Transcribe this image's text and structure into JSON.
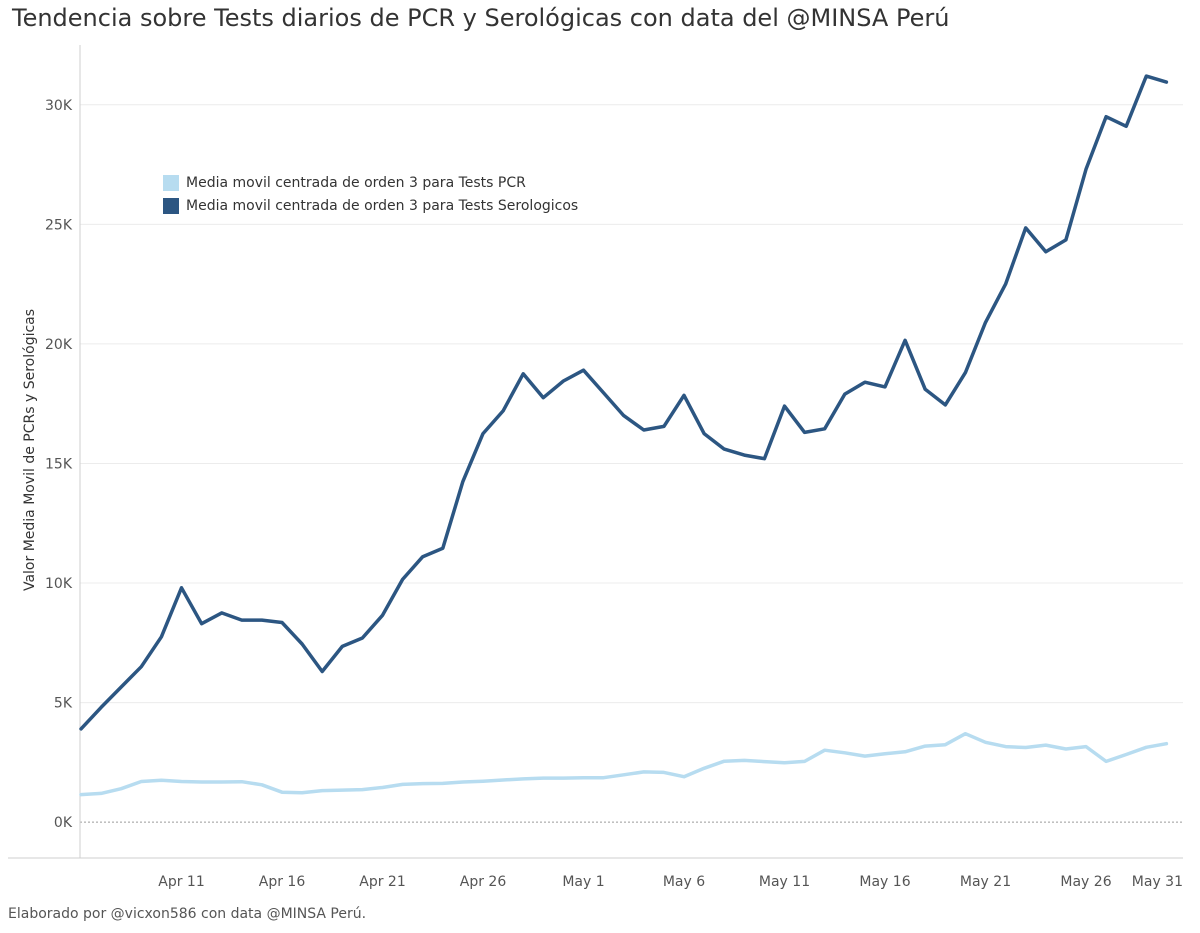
{
  "chart_data": {
    "type": "line",
    "title": "Tendencia sobre Tests diarios de PCR y Serológicas con data del @MINSA Perú",
    "ylabel": "Valor Media Movil de PCRs y Serológicas",
    "xlabel": "",
    "footer": "Elaborado por @vicxon586 con data @MINSA Perú.",
    "x_start": "2020-04-06",
    "x_end": "2020-05-30",
    "x_ticks": [
      {
        "date": "2020-04-11",
        "label": "Apr 11"
      },
      {
        "date": "2020-04-16",
        "label": "Apr 16"
      },
      {
        "date": "2020-04-21",
        "label": "Apr 21"
      },
      {
        "date": "2020-04-26",
        "label": "Apr 26"
      },
      {
        "date": "2020-05-01",
        "label": "May 1"
      },
      {
        "date": "2020-05-06",
        "label": "May 6"
      },
      {
        "date": "2020-05-11",
        "label": "May 11"
      },
      {
        "date": "2020-05-16",
        "label": "May 16"
      },
      {
        "date": "2020-05-21",
        "label": "May 21"
      },
      {
        "date": "2020-05-26",
        "label": "May 26"
      },
      {
        "date": "2020-05-31",
        "label": "May 31"
      }
    ],
    "y_ticks": [
      {
        "value": 0,
        "label": "0K"
      },
      {
        "value": 5000,
        "label": "5K"
      },
      {
        "value": 10000,
        "label": "10K"
      },
      {
        "value": 15000,
        "label": "15K"
      },
      {
        "value": 20000,
        "label": "20K"
      },
      {
        "value": 25000,
        "label": "25K"
      },
      {
        "value": 30000,
        "label": "30K"
      }
    ],
    "ylim": [
      -1500,
      32500
    ],
    "grid": true,
    "legend_position": "top-left",
    "series": [
      {
        "name": "Media movil centrada de orden 3 para Tests PCR",
        "color": "#b7dcf0",
        "values": [
          1150,
          1200,
          1400,
          1700,
          1750,
          1700,
          1680,
          1680,
          1690,
          1560,
          1250,
          1230,
          1320,
          1340,
          1360,
          1450,
          1580,
          1610,
          1620,
          1680,
          1710,
          1760,
          1810,
          1840,
          1840,
          1860,
          1860,
          1980,
          2100,
          2080,
          1900,
          2250,
          2550,
          2580,
          2530,
          2480,
          2540,
          3010,
          2900,
          2760,
          2860,
          2940,
          3180,
          3240,
          3700,
          3340,
          3160,
          3120,
          3220,
          3060,
          3160,
          2540,
          2830,
          3130,
          3280
        ]
      },
      {
        "name": "Media movil centrada de orden 3 para Tests Serologicos",
        "color": "#2c5682",
        "values": [
          3900,
          4800,
          5650,
          6500,
          7750,
          9800,
          8300,
          8750,
          8450,
          8450,
          8350,
          7450,
          6300,
          7350,
          7700,
          8650,
          10150,
          11100,
          11450,
          14250,
          16250,
          17200,
          18750,
          17750,
          18450,
          18900,
          17950,
          17000,
          16400,
          16550,
          17850,
          16250,
          15600,
          15350,
          15200,
          17400,
          16300,
          16450,
          17900,
          18400,
          18200,
          20150,
          18100,
          17450,
          18800,
          20900,
          22500,
          24850,
          23850,
          24350,
          27300,
          29500,
          29100,
          31200,
          30950
        ]
      }
    ]
  }
}
